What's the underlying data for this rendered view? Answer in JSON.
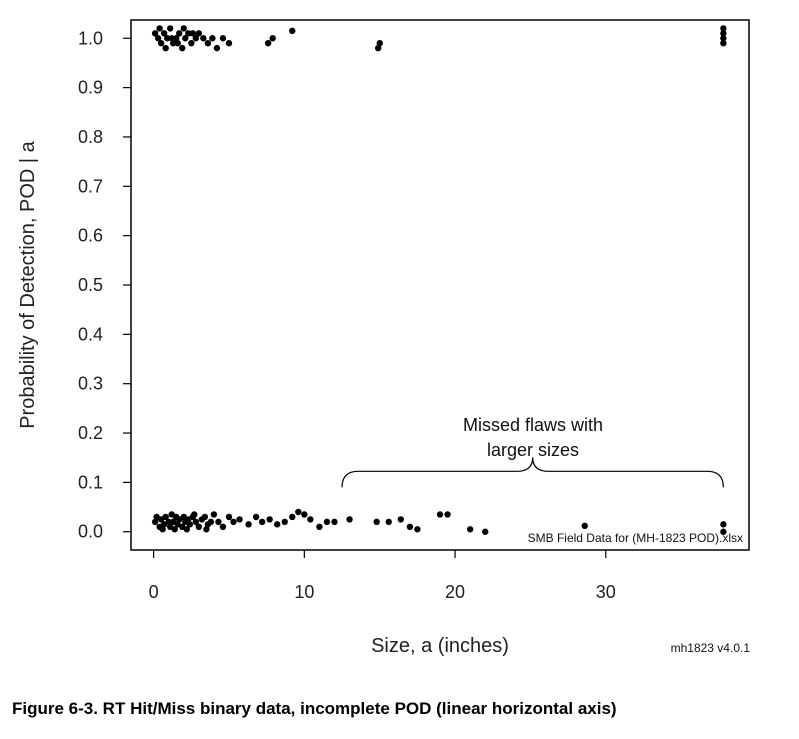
{
  "chart_data": {
    "type": "scatter",
    "xlabel": "Size, a  (inches)",
    "ylabel": "Probability of Detection, POD | a",
    "xlim": [
      -1.5,
      39.5
    ],
    "ylim": [
      -0.037,
      1.037
    ],
    "x_ticks": [
      0,
      10,
      20,
      30
    ],
    "x_tick_labels": [
      "0",
      "10",
      "20",
      "30"
    ],
    "y_ticks": [
      0.0,
      0.1,
      0.2,
      0.3,
      0.4,
      0.5,
      0.6,
      0.7,
      0.8,
      0.9,
      1.0
    ],
    "y_tick_labels": [
      "0.0",
      "0.1",
      "0.2",
      "0.3",
      "0.4",
      "0.5",
      "0.6",
      "0.7",
      "0.8",
      "0.9",
      "1.0"
    ],
    "grid": false,
    "hits": [
      {
        "x": 0.1,
        "y": 1.01
      },
      {
        "x": 0.3,
        "y": 1.0
      },
      {
        "x": 0.5,
        "y": 0.99
      },
      {
        "x": 0.7,
        "y": 1.01
      },
      {
        "x": 0.9,
        "y": 1.0
      },
      {
        "x": 1.1,
        "y": 1.02
      },
      {
        "x": 1.3,
        "y": 0.99
      },
      {
        "x": 1.5,
        "y": 1.0
      },
      {
        "x": 1.7,
        "y": 1.01
      },
      {
        "x": 1.9,
        "y": 0.98
      },
      {
        "x": 2.1,
        "y": 1.0
      },
      {
        "x": 2.3,
        "y": 1.01
      },
      {
        "x": 2.5,
        "y": 0.99
      },
      {
        "x": 2.8,
        "y": 1.0
      },
      {
        "x": 3.0,
        "y": 1.01
      },
      {
        "x": 3.3,
        "y": 1.0
      },
      {
        "x": 3.6,
        "y": 0.99
      },
      {
        "x": 3.9,
        "y": 1.0
      },
      {
        "x": 4.2,
        "y": 0.98
      },
      {
        "x": 4.6,
        "y": 1.0
      },
      {
        "x": 5.0,
        "y": 0.99
      },
      {
        "x": 0.4,
        "y": 1.02
      },
      {
        "x": 0.8,
        "y": 0.98
      },
      {
        "x": 1.2,
        "y": 1.0
      },
      {
        "x": 1.6,
        "y": 0.99
      },
      {
        "x": 2.0,
        "y": 1.02
      },
      {
        "x": 2.6,
        "y": 1.01
      },
      {
        "x": 7.6,
        "y": 0.99
      },
      {
        "x": 7.9,
        "y": 1.0
      },
      {
        "x": 9.2,
        "y": 1.015
      },
      {
        "x": 14.9,
        "y": 0.98
      },
      {
        "x": 15.0,
        "y": 0.99
      },
      {
        "x": 37.8,
        "y": 0.99
      },
      {
        "x": 37.8,
        "y": 1.0
      },
      {
        "x": 37.8,
        "y": 1.01
      },
      {
        "x": 37.8,
        "y": 1.02
      }
    ],
    "misses": [
      {
        "x": 0.1,
        "y": 0.02
      },
      {
        "x": 0.2,
        "y": 0.03
      },
      {
        "x": 0.4,
        "y": 0.01
      },
      {
        "x": 0.5,
        "y": 0.025
      },
      {
        "x": 0.7,
        "y": 0.015
      },
      {
        "x": 0.8,
        "y": 0.03
      },
      {
        "x": 1.0,
        "y": 0.02
      },
      {
        "x": 1.1,
        "y": 0.01
      },
      {
        "x": 1.2,
        "y": 0.035
      },
      {
        "x": 1.3,
        "y": 0.02
      },
      {
        "x": 1.5,
        "y": 0.03
      },
      {
        "x": 1.6,
        "y": 0.015
      },
      {
        "x": 1.7,
        "y": 0.025
      },
      {
        "x": 1.9,
        "y": 0.01
      },
      {
        "x": 2.0,
        "y": 0.03
      },
      {
        "x": 2.1,
        "y": 0.02
      },
      {
        "x": 2.3,
        "y": 0.025
      },
      {
        "x": 2.4,
        "y": 0.015
      },
      {
        "x": 2.6,
        "y": 0.03
      },
      {
        "x": 2.8,
        "y": 0.02
      },
      {
        "x": 3.0,
        "y": 0.01
      },
      {
        "x": 3.2,
        "y": 0.025
      },
      {
        "x": 3.4,
        "y": 0.03
      },
      {
        "x": 3.6,
        "y": 0.015
      },
      {
        "x": 3.8,
        "y": 0.02
      },
      {
        "x": 4.0,
        "y": 0.035
      },
      {
        "x": 4.3,
        "y": 0.02
      },
      {
        "x": 4.6,
        "y": 0.01
      },
      {
        "x": 5.0,
        "y": 0.03
      },
      {
        "x": 5.3,
        "y": 0.02
      },
      {
        "x": 5.7,
        "y": 0.025
      },
      {
        "x": 6.3,
        "y": 0.015
      },
      {
        "x": 6.8,
        "y": 0.03
      },
      {
        "x": 7.2,
        "y": 0.02
      },
      {
        "x": 7.7,
        "y": 0.025
      },
      {
        "x": 8.2,
        "y": 0.015
      },
      {
        "x": 8.7,
        "y": 0.02
      },
      {
        "x": 9.2,
        "y": 0.03
      },
      {
        "x": 9.6,
        "y": 0.04
      },
      {
        "x": 10.0,
        "y": 0.035
      },
      {
        "x": 10.4,
        "y": 0.025
      },
      {
        "x": 11.0,
        "y": 0.01
      },
      {
        "x": 11.5,
        "y": 0.02
      },
      {
        "x": 12.0,
        "y": 0.02
      },
      {
        "x": 13.0,
        "y": 0.025
      },
      {
        "x": 14.8,
        "y": 0.02
      },
      {
        "x": 15.6,
        "y": 0.02
      },
      {
        "x": 16.4,
        "y": 0.025
      },
      {
        "x": 17.0,
        "y": 0.01
      },
      {
        "x": 17.5,
        "y": 0.005
      },
      {
        "x": 19.0,
        "y": 0.035
      },
      {
        "x": 19.5,
        "y": 0.035
      },
      {
        "x": 21.0,
        "y": 0.005
      },
      {
        "x": 22.0,
        "y": 0.0
      },
      {
        "x": 28.6,
        "y": 0.012
      },
      {
        "x": 37.8,
        "y": 0.0
      },
      {
        "x": 37.8,
        "y": 0.015
      },
      {
        "x": 0.6,
        "y": 0.005
      },
      {
        "x": 1.4,
        "y": 0.005
      },
      {
        "x": 2.2,
        "y": 0.005
      },
      {
        "x": 2.7,
        "y": 0.035
      },
      {
        "x": 3.5,
        "y": 0.005
      }
    ],
    "annotation": {
      "line1": "Missed flaws with",
      "line2": "larger sizes",
      "brace_x_start": 12.5,
      "brace_x_end": 37.8,
      "brace_y": 0.09
    },
    "source_note": "SMB Field Data for (MH-1823 POD).xlsx",
    "version_note": "mh1823 v4.0.1"
  },
  "caption": "Figure 6-3. RT Hit/Miss binary data, incomplete POD (linear horizontal axis)"
}
